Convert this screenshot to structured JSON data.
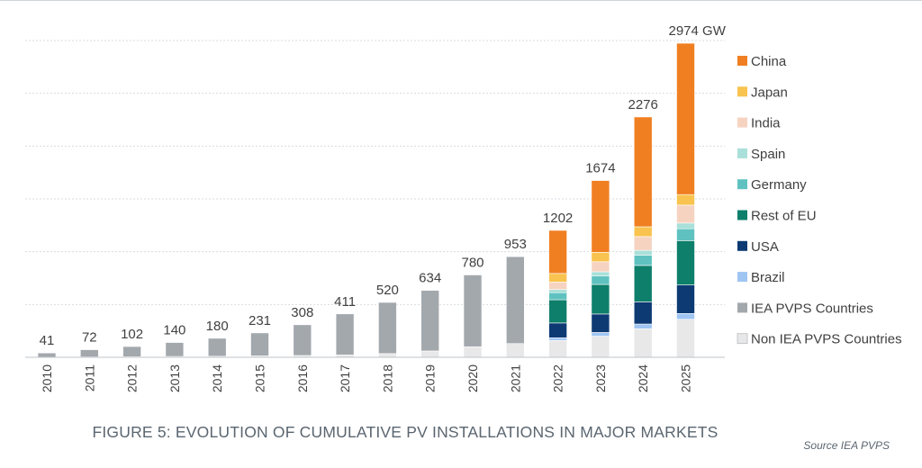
{
  "caption": "FIGURE 5: EVOLUTION OF CUMULATIVE PV INSTALLATIONS IN MAJOR MARKETS",
  "source": "Source IEA PVPS",
  "chart_data": {
    "type": "bar",
    "stacked": true,
    "categories": [
      "2010",
      "2011",
      "2012",
      "2013",
      "2014",
      "2015",
      "2016",
      "2017",
      "2018",
      "2019",
      "2020",
      "2021",
      "2022",
      "2023",
      "2024",
      "2025"
    ],
    "totals": [
      41,
      72,
      102,
      140,
      180,
      231,
      308,
      411,
      520,
      634,
      780,
      953,
      1202,
      1674,
      2276,
      2974
    ],
    "total_labels": [
      "41",
      "72",
      "102",
      "140",
      "180",
      "231",
      "308",
      "411",
      "520",
      "634",
      "780",
      "953",
      "1202",
      "1674",
      "2276",
      "2974 GW"
    ],
    "unit": "GW",
    "ylim": [
      0,
      3000
    ],
    "grid": true,
    "legend_position": "right",
    "series": [
      {
        "name": "Non IEA PVPS Countries",
        "color": "#e8e8e8",
        "values": [
          2,
          4,
          6,
          8,
          10,
          13,
          17,
          22,
          35,
          60,
          100,
          130,
          160,
          200,
          270,
          360
        ]
      },
      {
        "name": "IEA PVPS Countries",
        "color": "#a3a8ad",
        "values": [
          39,
          68,
          96,
          132,
          170,
          218,
          291,
          389,
          485,
          574,
          680,
          823,
          0,
          0,
          0,
          0
        ]
      },
      {
        "name": "Brazil",
        "color": "#9fc5f2",
        "values": [
          0,
          0,
          0,
          0,
          0,
          0,
          0,
          0,
          0,
          0,
          0,
          0,
          25,
          35,
          45,
          55
        ]
      },
      {
        "name": "USA",
        "color": "#0d3a73",
        "values": [
          0,
          0,
          0,
          0,
          0,
          0,
          0,
          0,
          0,
          0,
          0,
          0,
          140,
          175,
          210,
          270
        ]
      },
      {
        "name": "Rest of EU",
        "color": "#0e7f6b",
        "values": [
          0,
          0,
          0,
          0,
          0,
          0,
          0,
          0,
          0,
          0,
          0,
          0,
          220,
          280,
          345,
          420
        ]
      },
      {
        "name": "Germany",
        "color": "#5fc2c0",
        "values": [
          0,
          0,
          0,
          0,
          0,
          0,
          0,
          0,
          0,
          0,
          0,
          0,
          67,
          82,
          97,
          112
        ]
      },
      {
        "name": "Spain",
        "color": "#a9e0d9",
        "values": [
          0,
          0,
          0,
          0,
          0,
          0,
          0,
          0,
          0,
          0,
          0,
          0,
          30,
          38,
          46,
          54
        ]
      },
      {
        "name": "India",
        "color": "#f6d3c1",
        "values": [
          0,
          0,
          0,
          0,
          0,
          0,
          0,
          0,
          0,
          0,
          0,
          0,
          70,
          95,
          130,
          170
        ]
      },
      {
        "name": "Japan",
        "color": "#f8c34f",
        "values": [
          0,
          0,
          0,
          0,
          0,
          0,
          0,
          0,
          0,
          0,
          0,
          0,
          82,
          89,
          93,
          100
        ]
      },
      {
        "name": "China",
        "color": "#f07f22",
        "values": [
          0,
          0,
          0,
          0,
          0,
          0,
          0,
          0,
          0,
          0,
          0,
          0,
          408,
          680,
          1040,
          1433
        ]
      }
    ],
    "legend_order": [
      "China",
      "Japan",
      "India",
      "Spain",
      "Germany",
      "Rest of EU",
      "USA",
      "Brazil",
      "IEA PVPS Countries",
      "Non IEA PVPS Countries"
    ]
  }
}
